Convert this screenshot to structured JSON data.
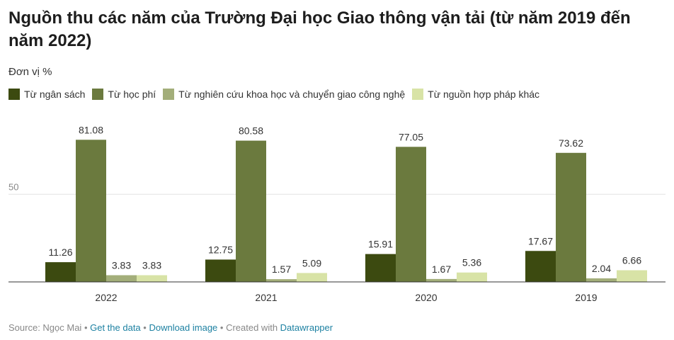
{
  "header": {
    "title": "Nguồn thu các năm của Trường Đại học Giao thông vận tải (từ năm 2019 đến năm 2022)",
    "subtitle": "Đơn vị %"
  },
  "legend": [
    {
      "label": "Từ ngân sách",
      "color": "#3c4a10"
    },
    {
      "label": "Từ học phí",
      "color": "#6b7a3e"
    },
    {
      "label": "Từ nghiên cứu khoa học và chuyển giao công nghệ",
      "color": "#a3ae7a"
    },
    {
      "label": "Từ nguồn hợp pháp khác",
      "color": "#d8e3a6"
    }
  ],
  "footer": {
    "source": "Source: Ngọc Mai",
    "sep1": " • ",
    "get_data": "Get the data",
    "sep2": " • ",
    "download": "Download image",
    "sep3": " • Created with ",
    "datawrapper": "Datawrapper"
  },
  "chart_data": {
    "type": "bar",
    "categories": [
      "2022",
      "2021",
      "2020",
      "2019"
    ],
    "series": [
      {
        "name": "Từ ngân sách",
        "color": "#3c4a10",
        "values": [
          11.26,
          12.75,
          15.91,
          17.67
        ]
      },
      {
        "name": "Từ học phí",
        "color": "#6b7a3e",
        "values": [
          81.08,
          80.58,
          77.05,
          73.62
        ]
      },
      {
        "name": "Từ nghiên cứu khoa học và chuyển giao công nghệ",
        "color": "#a3ae7a",
        "values": [
          3.83,
          1.57,
          1.67,
          2.04
        ]
      },
      {
        "name": "Từ nguồn hợp pháp khác",
        "color": "#d8e3a6",
        "values": [
          3.83,
          5.09,
          5.36,
          6.66
        ]
      }
    ],
    "yticks": [
      50
    ],
    "ylim": [
      0,
      90
    ],
    "grid": true,
    "legend_position": "top-left"
  }
}
